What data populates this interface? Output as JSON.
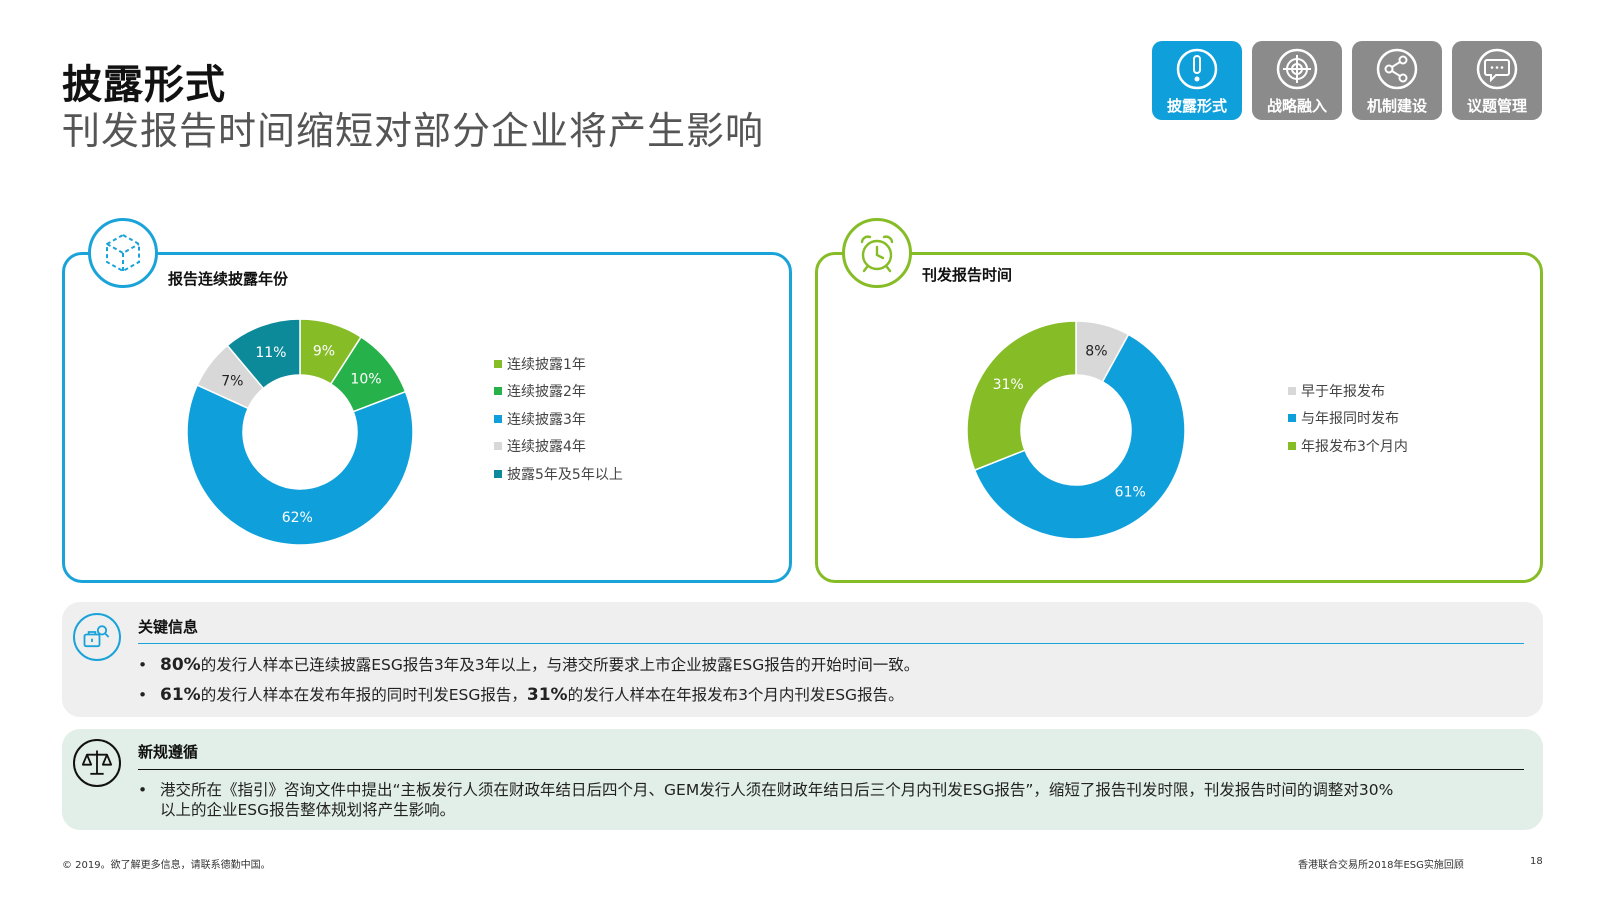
{
  "header": {
    "title": "披露形式",
    "subtitle": "刊发报告时间缩短对部分企业将产生影响"
  },
  "nav": {
    "items": [
      {
        "label": "披露形式",
        "icon": "exclamation-icon",
        "active": true
      },
      {
        "label": "战略融入",
        "icon": "target-icon",
        "active": false
      },
      {
        "label": "机制建设",
        "icon": "share-icon",
        "active": false
      },
      {
        "label": "议题管理",
        "icon": "chat-icon",
        "active": false
      }
    ]
  },
  "colors": {
    "blue": "#0fa0dc",
    "green_light": "#86bc25",
    "green_dark": "#26b14a",
    "teal": "#0d8a9a",
    "gray_light": "#d8d8d8",
    "nav_gray": "#8b8b8b"
  },
  "panels": {
    "left_title": "报告连续披露年份",
    "right_title": "刊发报告时间"
  },
  "chart_data": [
    {
      "type": "pie",
      "title": "报告连续披露年份",
      "categories": [
        "连续披露1年",
        "连续披露2年",
        "连续披露3年",
        "连续披露4年",
        "披露5年及5年以上"
      ],
      "values": [
        9,
        10,
        62,
        7,
        11
      ],
      "labels": [
        "9%",
        "10%",
        "62%",
        "7%",
        "11%"
      ],
      "colors": [
        "#86bc25",
        "#26b14a",
        "#0fa0dc",
        "#d8d8d8",
        "#0d8a9a"
      ],
      "label_colors": [
        "#ffffff",
        "#ffffff",
        "#ffffff",
        "#222222",
        "#ffffff"
      ],
      "legend": "right"
    },
    {
      "type": "pie",
      "title": "刊发报告时间",
      "categories": [
        "早于年报发布",
        "与年报同时发布",
        "年报发布3个月内"
      ],
      "values": [
        8,
        61,
        31
      ],
      "labels": [
        "8%",
        "61%",
        "31%"
      ],
      "colors": [
        "#d8d8d8",
        "#0fa0dc",
        "#86bc25"
      ],
      "label_colors": [
        "#222222",
        "#ffffff",
        "#ffffff"
      ],
      "legend": "right"
    }
  ],
  "key_info": {
    "title": "关键信息",
    "bullets": [
      {
        "bold": "80%",
        "text": "的发行人样本已连续披露ESG报告3年及3年以上，与港交所要求上市企业披露ESG报告的开始时间一致。"
      },
      {
        "bold1": "61%",
        "text1": "的发行人样本在发布年报的同时刊发ESG报告，",
        "bold2": "31%",
        "text2": "的发行人样本在年报发布3个月内刊发ESG报告。"
      }
    ]
  },
  "new_rules": {
    "title": "新规遵循",
    "line1": "港交所在《指引》咨询文件中提出“主板发行人须在财政年结日后四个月、GEM发行人须在财政年结日后三个月内刊发ESG报告”，缩短了报告刊发时限，刊发报告时间的调整对30%",
    "line2": "以上的企业ESG报告整体规划将产生影响。"
  },
  "footer": {
    "left": "© 2019。欲了解更多信息，请联系德勤中国。",
    "right": "香港联合交易所2018年ESG实施回顾",
    "page": "18"
  }
}
